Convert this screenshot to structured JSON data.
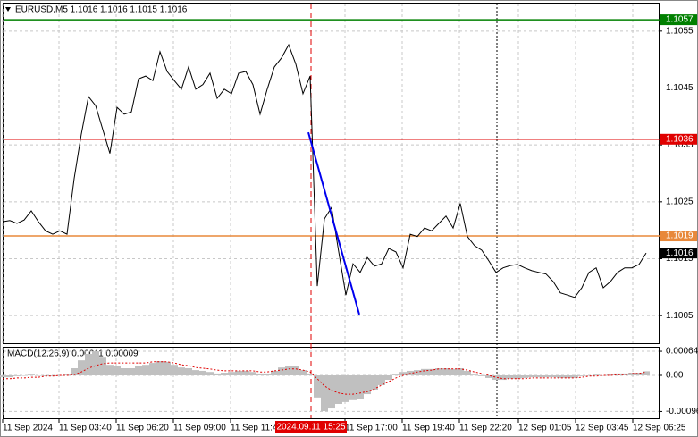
{
  "chart_data": [
    {
      "type": "line",
      "title": "EURUSD,M5 1.1016 1.1016 1.1015 1.1016",
      "color": "#000000",
      "values": [
        1.10215,
        1.10217,
        1.10212,
        1.10218,
        1.10234,
        1.10215,
        1.10199,
        1.10193,
        1.10199,
        1.10193,
        1.10291,
        1.10369,
        1.10435,
        1.10419,
        1.10377,
        1.10335,
        1.10416,
        1.10404,
        1.10408,
        1.10466,
        1.10471,
        1.10463,
        1.10514,
        1.10479,
        1.10463,
        1.10448,
        1.10487,
        1.10448,
        1.10456,
        1.10476,
        1.10432,
        1.10448,
        1.1044,
        1.10476,
        1.10479,
        1.10456,
        1.10404,
        1.10448,
        1.10487,
        1.10503,
        1.10526,
        1.10492,
        1.1044,
        1.10471,
        1.10102,
        1.1022,
        1.1024,
        1.10162,
        1.10086,
        1.10141,
        1.10126,
        1.10152,
        1.10137,
        1.10141,
        1.10168,
        1.10162,
        1.10134,
        1.10193,
        1.10189,
        1.10204,
        1.10199,
        1.10212,
        1.10225,
        1.10204,
        1.10247,
        1.10189,
        1.10173,
        1.10165,
        1.10146,
        1.10126,
        1.10134,
        1.10138,
        1.1014,
        1.10134,
        1.10129,
        1.10126,
        1.10123,
        1.1011,
        1.1009,
        1.10086,
        1.10082,
        1.10099,
        1.10126,
        1.10134,
        1.10099,
        1.1011,
        1.10126,
        1.10134,
        1.10134,
        1.1014,
        1.1016
      ],
      "xlim": [
        0,
        91.875
      ],
      "xticks": [
        {
          "value": 0,
          "label": "11 Sep 2024"
        },
        {
          "value": 7.875,
          "label": "11 Sep 03:40"
        },
        {
          "value": 15.875,
          "label": "11 Sep 06:20"
        },
        {
          "value": 23.875,
          "label": "11 Sep 09:00"
        },
        {
          "value": 31.875,
          "label": "11 Sep 11:40"
        },
        {
          "value": 47.875,
          "label": "11 Sep 17:00"
        },
        {
          "value": 55.875,
          "label": "11 Sep 19:40"
        },
        {
          "value": 63.875,
          "label": "11 Sep 22:20"
        },
        {
          "value": 72.125,
          "label": "12 Sep 01:05"
        },
        {
          "value": 80.125,
          "label": "12 Sep 03:45"
        },
        {
          "value": 88.125,
          "label": "12 Sep 06:25"
        }
      ],
      "ylim": [
        1.1,
        1.106
      ],
      "yticks": [
        1.1005,
        1.1015,
        1.1025,
        1.1035,
        1.1045,
        1.1055
      ],
      "grid": true,
      "levels": [
        {
          "value": 1.1057,
          "color": "#008000",
          "line": true
        },
        {
          "value": 1.1036,
          "color": "#e00000",
          "line": true
        },
        {
          "value": 1.1019,
          "color": "#e8883a",
          "line": true
        },
        {
          "value": 1.1016,
          "color": "#000000",
          "line": false
        }
      ],
      "trendline": {
        "x": [
          42.75,
          49.875
        ],
        "values": [
          1.10372,
          1.10052
        ],
        "color": "#0000ee"
      },
      "crosshair": {
        "value": 43.125,
        "label": "2024.09.11 15:25",
        "color": "#e00000"
      },
      "separator": 69.125
    },
    {
      "type": "macd",
      "title": "MACD(12,26,9) 0.00011 0.00009",
      "histogram": {
        "color": "#c0c0c0",
        "values": [
          -5e-05,
          -5e-05,
          -2e-05,
          0,
          2e-05,
          0,
          -2e-05,
          -2e-05,
          0,
          2e-05,
          0.00019,
          0.0004,
          0.00057,
          0.00064,
          0.00047,
          0.00028,
          0.00024,
          0.00019,
          0.00019,
          0.00024,
          0.00028,
          0.00033,
          0.00038,
          0.00036,
          0.00028,
          0.00021,
          0.00019,
          0.00014,
          0.00012,
          9e-05,
          5e-05,
          7e-05,
          9e-05,
          0.00012,
          0.00012,
          9e-05,
          5e-05,
          5e-05,
          0.00012,
          0.00021,
          0.00026,
          0.00024,
          0.00014,
          5e-05,
          -0.00059,
          -0.00095,
          -0.00088,
          -0.00076,
          -0.00071,
          -0.00066,
          -0.00062,
          -0.0005,
          -0.00038,
          -0.00026,
          -0.00012,
          2e-05,
          9e-05,
          0.00012,
          0.00014,
          0.00017,
          0.00017,
          0.00019,
          0.00019,
          0.00017,
          0.00019,
          0.00012,
          2e-05,
          -2e-05,
          -7e-05,
          -0.00012,
          -0.00012,
          -9e-05,
          -9e-05,
          -7e-05,
          -5e-05,
          -5e-05,
          -5e-05,
          -5e-05,
          -7e-05,
          -7e-05,
          -7e-05,
          -2e-05,
          0,
          2e-05,
          0,
          2e-05,
          5e-05,
          5e-05,
          7e-05,
          7e-05,
          0.00011
        ]
      },
      "signal": {
        "color": "#e00000",
        "values": [
          -9e-05,
          -9e-05,
          -7e-05,
          -7e-05,
          -5e-05,
          -5e-05,
          -2e-05,
          -2e-05,
          0,
          0,
          2e-05,
          9e-05,
          0.00019,
          0.00026,
          0.00031,
          0.00033,
          0.00033,
          0.00033,
          0.00033,
          0.00033,
          0.00033,
          0.00036,
          0.00036,
          0.00036,
          0.00033,
          0.00028,
          0.00026,
          0.00021,
          0.00019,
          0.00017,
          0.00014,
          0.00012,
          0.00012,
          0.00012,
          0.00012,
          0.00012,
          9e-05,
          9e-05,
          0.00012,
          0.00014,
          0.00017,
          0.00017,
          0.00014,
          9e-05,
          -9e-05,
          -0.00028,
          -0.0004,
          -0.00047,
          -0.0005,
          -0.0005,
          -0.00047,
          -0.00043,
          -0.00036,
          -0.00026,
          -0.00017,
          -7e-05,
          0,
          5e-05,
          9e-05,
          0.00012,
          0.00014,
          0.00017,
          0.00017,
          0.00017,
          0.00017,
          0.00014,
          9e-05,
          5e-05,
          0,
          -5e-05,
          -9e-05,
          -9e-05,
          -9e-05,
          -9e-05,
          -7e-05,
          -7e-05,
          -7e-05,
          -7e-05,
          -7e-05,
          -7e-05,
          -7e-05,
          -5e-05,
          -2e-05,
          -2e-05,
          0,
          0,
          2e-05,
          2e-05,
          5e-05,
          5e-05,
          9e-05
        ]
      },
      "ylim": [
        -0.00114,
        0.00076
      ],
      "yticks": [
        0.00064,
        {
          "value": 0,
          "label": "0.00"
        },
        -0.00096
      ],
      "grid": true
    }
  ]
}
